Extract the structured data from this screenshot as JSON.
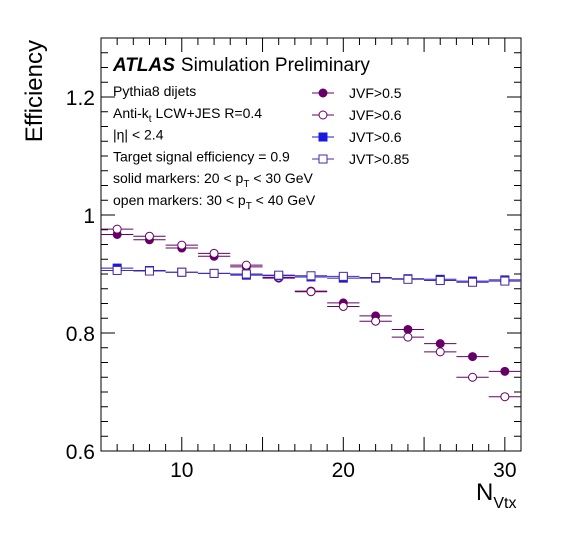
{
  "chart_data": {
    "type": "scatter",
    "xlabel_main": "N",
    "xlabel_sub": "Vtx",
    "ylabel": "Efficiency",
    "xlim": [
      5,
      31
    ],
    "ylim": [
      0.6,
      1.3
    ],
    "xticks": [
      10,
      20,
      30
    ],
    "yticks": [
      {
        "value": 0.6,
        "label": "0.6"
      },
      {
        "value": 0.8,
        "label": "0.8"
      },
      {
        "value": 1.0,
        "label": "1"
      },
      {
        "value": 1.2,
        "label": "1.2"
      }
    ],
    "atlas_label": "ATLAS",
    "atlas_suffix": "Simulation Preliminary",
    "annotations": [
      {
        "parts": [
          {
            "t": "Pythia8 dijets"
          }
        ]
      },
      {
        "parts": [
          {
            "t": "Anti-k"
          },
          {
            "t": "t",
            "sub": true
          },
          {
            "t": " LCW+JES R=0.4"
          }
        ]
      },
      {
        "parts": [
          {
            "t": "|η| < 2.4"
          }
        ]
      },
      {
        "parts": [
          {
            "t": "Target signal efficiency = 0.9"
          }
        ]
      },
      {
        "parts": [
          {
            "t": "solid markers: 20 < p"
          },
          {
            "t": "T",
            "sub": true
          },
          {
            "t": " < 30 GeV"
          }
        ]
      },
      {
        "parts": [
          {
            "t": "open markers: 30 < p"
          },
          {
            "t": "T",
            "sub": true
          },
          {
            "t": " < 40 GeV"
          }
        ]
      }
    ],
    "x_bins": [
      [
        5,
        7
      ],
      [
        7,
        9
      ],
      [
        9,
        11
      ],
      [
        11,
        13
      ],
      [
        13,
        15
      ],
      [
        15,
        17
      ],
      [
        17,
        19
      ],
      [
        19,
        21
      ],
      [
        21,
        23
      ],
      [
        23,
        25
      ],
      [
        25,
        27
      ],
      [
        27,
        29
      ],
      [
        29,
        31
      ]
    ],
    "x": [
      6,
      8,
      10,
      12,
      14,
      16,
      18,
      20,
      22,
      24,
      26,
      28,
      30
    ],
    "series": [
      {
        "name": "JVF>0.5",
        "marker": "circle",
        "filled": true,
        "color": "#660066",
        "values": [
          0.967,
          0.958,
          0.944,
          0.93,
          0.912,
          0.893,
          0.871,
          0.851,
          0.829,
          0.806,
          0.782,
          0.76,
          0.735
        ]
      },
      {
        "name": "JVF>0.6",
        "marker": "circle",
        "filled": false,
        "color": "#660066",
        "values": [
          0.976,
          0.964,
          0.949,
          0.935,
          0.915,
          0.894,
          0.87,
          0.845,
          0.82,
          0.793,
          0.768,
          0.725,
          0.692
        ]
      },
      {
        "name": "JVT>0.6",
        "marker": "square",
        "filled": true,
        "color": "#1a1adc",
        "values": [
          0.91,
          0.906,
          0.903,
          0.901,
          0.898,
          0.897,
          0.895,
          0.893,
          0.893,
          0.892,
          0.891,
          0.888,
          0.89
        ]
      },
      {
        "name": "JVT>0.85",
        "marker": "square",
        "filled": false,
        "color": "#4a2aa0",
        "values": [
          0.906,
          0.905,
          0.903,
          0.901,
          0.9,
          0.898,
          0.897,
          0.896,
          0.894,
          0.891,
          0.889,
          0.886,
          0.888
        ]
      }
    ]
  }
}
